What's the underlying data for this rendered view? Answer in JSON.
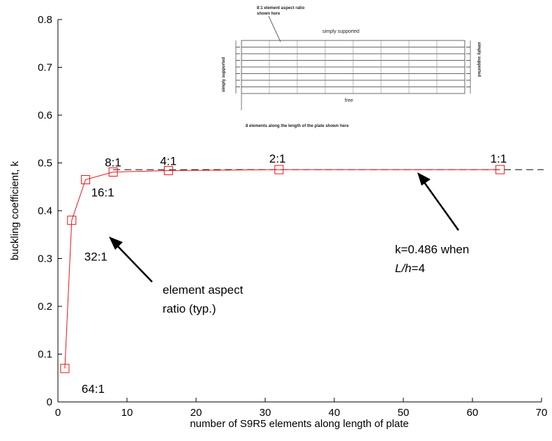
{
  "chart_data": {
    "type": "line",
    "xlabel": "number of S9R5 elements along length of plate",
    "ylabel": "buckling coefficient, k",
    "xlim": [
      0,
      70
    ],
    "ylim": [
      0,
      0.8
    ],
    "xticks": [
      "0",
      "10",
      "20",
      "30",
      "40",
      "50",
      "60",
      "70"
    ],
    "yticks": [
      "0",
      "0.1",
      "0.2",
      "0.3",
      "0.4",
      "0.5",
      "0.6",
      "0.7",
      "0.8"
    ],
    "grid": false,
    "series": [
      {
        "color": "#e8141c",
        "marker": "square",
        "x": [
          1,
          2,
          4,
          8,
          16,
          32,
          64
        ],
        "y": [
          0.07,
          0.38,
          0.465,
          0.481,
          0.484,
          0.486,
          0.486
        ]
      },
      {
        "color": "#000000",
        "style": "dashed",
        "x": [
          8,
          72
        ],
        "y": [
          0.486,
          0.486
        ]
      }
    ],
    "point_labels": [
      {
        "text": "64:1",
        "x": 1,
        "y": 0.07
      },
      {
        "text": "32:1",
        "x": 2,
        "y": 0.38
      },
      {
        "text": "16:1",
        "x": 4,
        "y": 0.465
      },
      {
        "text": "8:1",
        "x": 8,
        "y": 0.481
      },
      {
        "text": "4:1",
        "x": 16,
        "y": 0.484
      },
      {
        "text": "2:1",
        "x": 32,
        "y": 0.486
      },
      {
        "text": "1:1",
        "x": 64,
        "y": 0.486
      }
    ],
    "annotations": {
      "aspect_line1": "element aspect",
      "aspect_line2": "ratio (typ.)",
      "k_line1": "k=0.486 when",
      "k_line2_italic_L": "L/h",
      "k_line2_rest": "=4"
    },
    "inset": {
      "note_top_line1": "8:1 element aspect ratio",
      "note_top_line2": "shown here",
      "top_edge": "simply supported",
      "left_edge": "simply supported",
      "right_edge": "simply supported",
      "bottom_edge": "free",
      "note_bottom": "8 elements along the length of the plate shown here"
    }
  }
}
